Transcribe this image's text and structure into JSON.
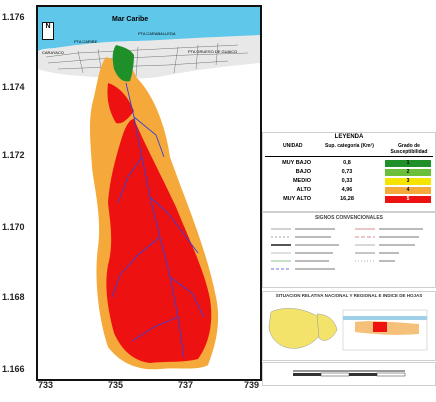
{
  "map": {
    "sea_label": "Mar Caribe",
    "north_label": "N",
    "place_labels": [
      "PTA CARABALLEDA",
      "PTA CARIBE",
      "CARAYACO",
      "PTA GRUESO DE GUAICO"
    ],
    "y_ticks": [
      "1.176",
      "1.174",
      "1.172",
      "1.170",
      "1.168",
      "1.166"
    ],
    "x_ticks": [
      "733",
      "735",
      "737",
      "739"
    ]
  },
  "legend": {
    "title": "LEYENDA",
    "col_unit": "UNIDAD",
    "col_area": "Sup. categoría (Km²)",
    "col_grade": "Grado de Susceptibilidad",
    "rows": [
      {
        "unit": "MUY BAJO",
        "area": "0,8",
        "grade": "1",
        "color": "#1f8f2a"
      },
      {
        "unit": "BAJO",
        "area": "0,73",
        "grade": "2",
        "color": "#6cbf3a"
      },
      {
        "unit": "MEDIO",
        "area": "0,33",
        "grade": "3",
        "color": "#f5e400"
      },
      {
        "unit": "ALTO",
        "area": "4,96",
        "grade": "4",
        "color": "#f4a93a"
      },
      {
        "unit": "MUY ALTO",
        "area": "16,28",
        "grade": "5",
        "color": "#ee1111"
      }
    ]
  },
  "signs": {
    "title": "SIGNOS CONVENCIONALES"
  },
  "situation": {
    "title": "SITUACION RELATIVA NACIONAL Y REGIONAL E INDICE DE HOJAS"
  },
  "colors": {
    "sea": "#5ec7ea",
    "high": "#f4a93a",
    "very_high": "#ee1111",
    "low": "#1f8f2a",
    "river": "#3a3fd6"
  }
}
